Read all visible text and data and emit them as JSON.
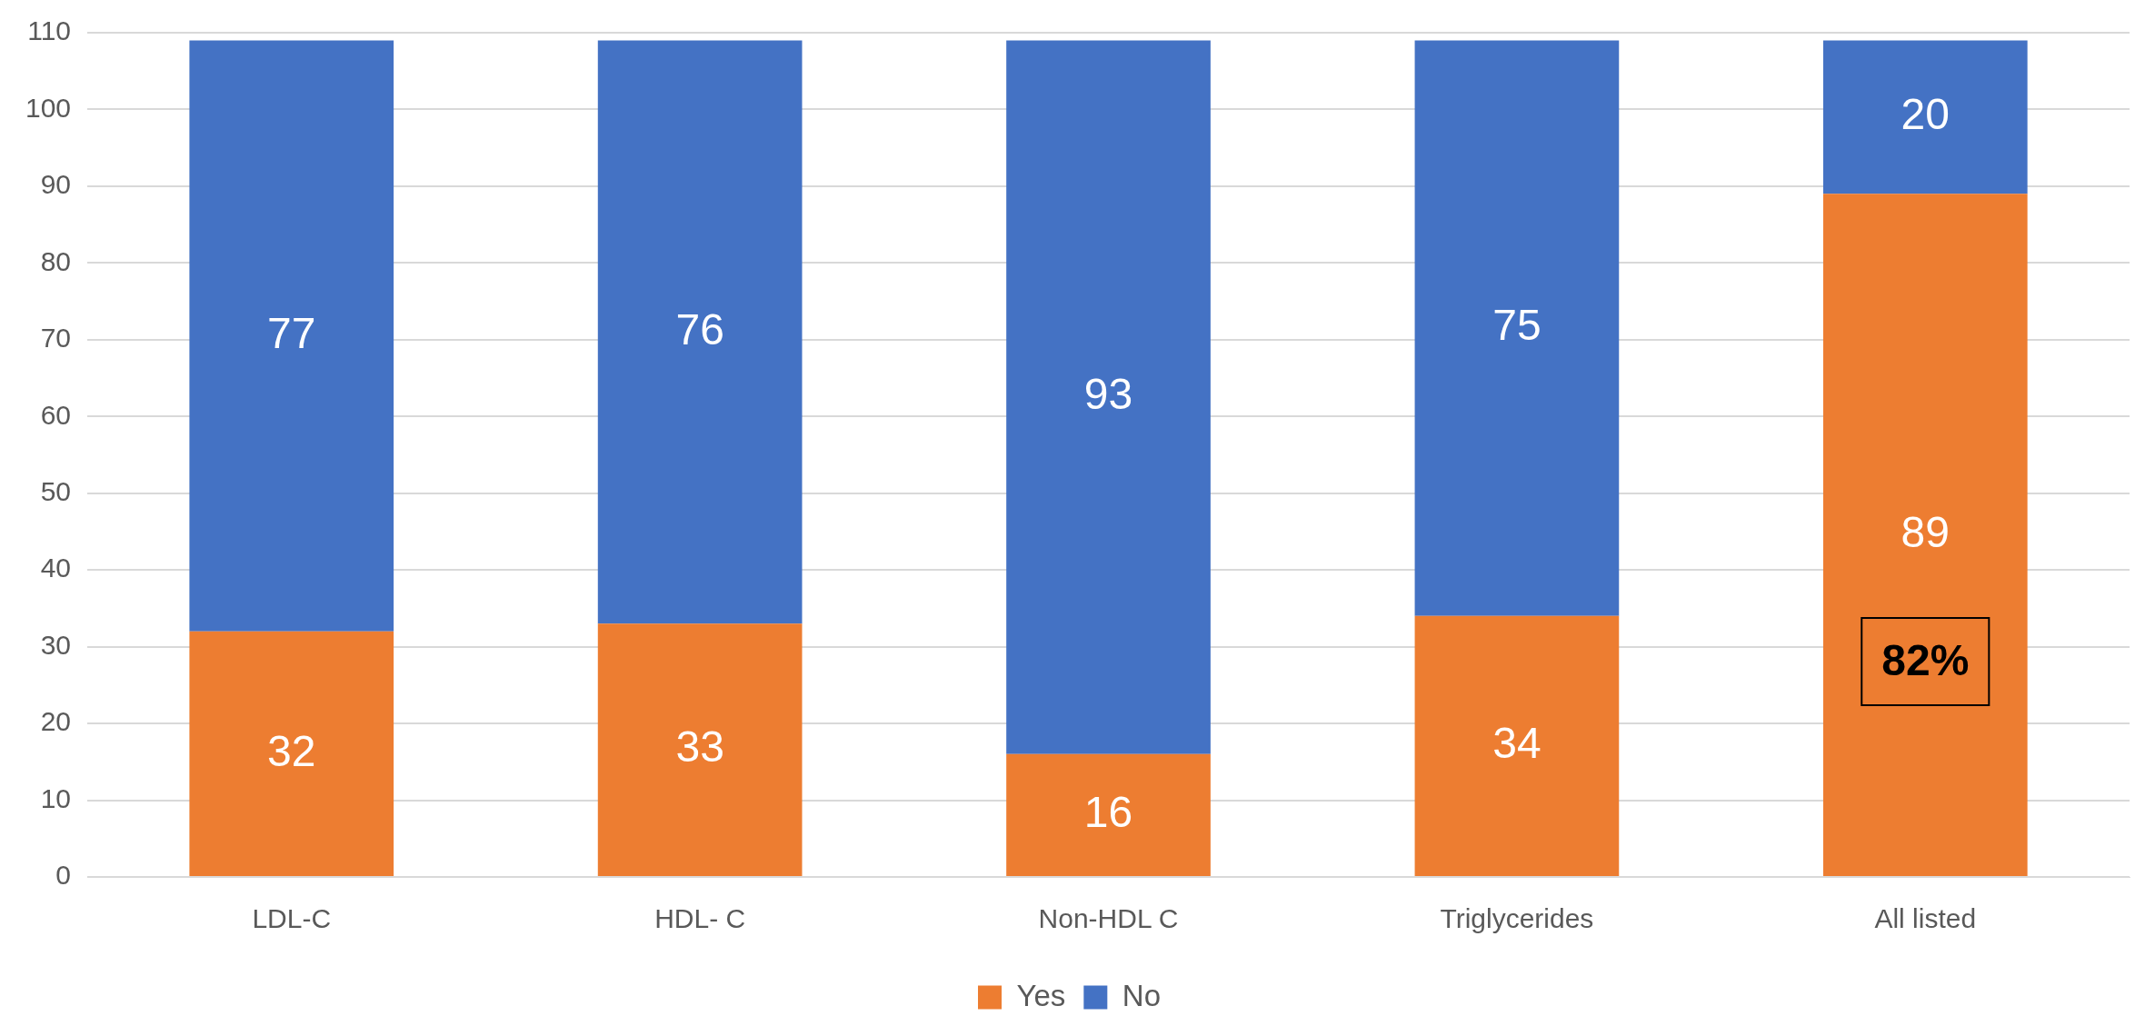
{
  "chart_data": {
    "type": "bar",
    "stacked": true,
    "categories": [
      "LDL-C",
      "HDL- C",
      "Non-HDL C",
      "Triglycerides",
      "All listed"
    ],
    "series": [
      {
        "name": "Yes",
        "color": "#ed7d31",
        "values": [
          32,
          33,
          16,
          34,
          89
        ]
      },
      {
        "name": "No",
        "color": "#4472c4",
        "values": [
          77,
          76,
          93,
          75,
          20
        ]
      }
    ],
    "ylim": [
      0,
      110
    ],
    "yticks": [
      0,
      10,
      20,
      30,
      40,
      50,
      60,
      70,
      80,
      90,
      100,
      110
    ],
    "grid": "y",
    "legend": "bottom",
    "data_labels": true,
    "annotations": [
      "82%"
    ]
  }
}
